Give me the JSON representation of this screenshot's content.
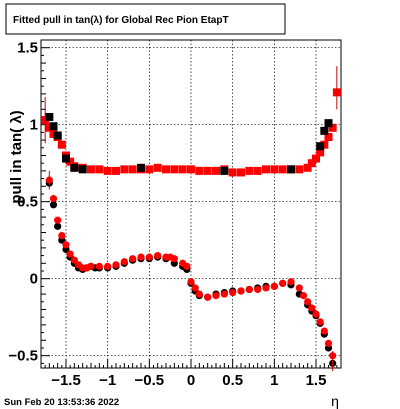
{
  "chart_data": {
    "type": "scatter",
    "title": "Fitted pull in tan(λ) for Global Rec Pion EtapT",
    "xlabel": "η",
    "ylabel": "pull in tan( λ)",
    "xlim": [
      -1.8,
      1.8
    ],
    "ylim": [
      -0.58,
      1.55
    ],
    "xticks": [
      -1.5,
      -1,
      -0.5,
      0,
      0.5,
      1,
      1.5
    ],
    "xtick_labels": [
      "−1.5",
      "−1",
      "−0.5",
      "0",
      "0.5",
      "1",
      "1.5"
    ],
    "yticks": [
      -0.5,
      0,
      0.5,
      1,
      1.5
    ],
    "ytick_labels": [
      "−0.5",
      "0",
      "0.5",
      "1",
      "1.5"
    ],
    "grid": true,
    "series": [
      {
        "marker": "circle",
        "color": "#000000",
        "x": [
          -1.7,
          -1.65,
          -1.6,
          -1.55,
          -1.5,
          -1.45,
          -1.4,
          -1.35,
          -1.3,
          -1.25,
          -1.2,
          -1.15,
          -1.1,
          -1.0,
          -0.9,
          -0.8,
          -0.7,
          -0.6,
          -0.5,
          -0.4,
          -0.3,
          -0.2,
          -0.1,
          -0.05,
          0.0,
          0.05,
          0.1,
          0.2,
          0.3,
          0.4,
          0.5,
          0.6,
          0.7,
          0.8,
          0.9,
          1.0,
          1.1,
          1.2,
          1.3,
          1.4,
          1.45,
          1.5,
          1.55,
          1.6,
          1.65,
          1.7
        ],
        "y": [
          0.62,
          0.48,
          0.34,
          0.25,
          0.19,
          0.14,
          0.1,
          0.07,
          0.06,
          0.07,
          0.08,
          0.07,
          0.07,
          0.07,
          0.08,
          0.1,
          0.12,
          0.13,
          0.13,
          0.14,
          0.13,
          0.1,
          0.08,
          0.06,
          -0.03,
          -0.08,
          -0.11,
          -0.12,
          -0.1,
          -0.09,
          -0.08,
          -0.08,
          -0.07,
          -0.06,
          -0.05,
          -0.05,
          -0.03,
          -0.04,
          -0.1,
          -0.17,
          -0.21,
          -0.24,
          -0.29,
          -0.36,
          -0.45,
          -0.55
        ]
      },
      {
        "marker": "square",
        "color": "#ff0000",
        "x": [
          -1.75,
          -1.7,
          -1.65,
          -1.6,
          -1.55,
          -1.5,
          -1.45,
          -1.4,
          -1.3,
          -1.2,
          -1.1,
          -1.0,
          -0.9,
          -0.8,
          -0.7,
          -0.6,
          -0.5,
          -0.4,
          -0.3,
          -0.2,
          -0.1,
          0.0,
          0.1,
          0.2,
          0.3,
          0.4,
          0.5,
          0.6,
          0.7,
          0.8,
          0.9,
          1.0,
          1.1,
          1.2,
          1.3,
          1.4,
          1.45,
          1.5,
          1.55,
          1.6,
          1.65,
          1.7,
          1.75
        ],
        "y": [
          1.03,
          0.98,
          0.94,
          0.92,
          0.87,
          0.8,
          0.76,
          0.73,
          0.72,
          0.71,
          0.71,
          0.7,
          0.7,
          0.71,
          0.71,
          0.71,
          0.71,
          0.72,
          0.71,
          0.71,
          0.71,
          0.71,
          0.7,
          0.7,
          0.7,
          0.71,
          0.69,
          0.69,
          0.7,
          0.7,
          0.71,
          0.71,
          0.71,
          0.71,
          0.71,
          0.72,
          0.75,
          0.78,
          0.82,
          0.87,
          0.92,
          0.98,
          1.21
        ]
      },
      {
        "marker": "circle",
        "color": "#ff0000",
        "x": [
          -1.7,
          -1.65,
          -1.6,
          -1.55,
          -1.5,
          -1.45,
          -1.4,
          -1.35,
          -1.3,
          -1.25,
          -1.2,
          -1.1,
          -1.0,
          -0.9,
          -0.8,
          -0.7,
          -0.6,
          -0.5,
          -0.4,
          -0.3,
          -0.25,
          -0.2,
          -0.1,
          -0.05,
          0.0,
          0.05,
          0.1,
          0.2,
          0.3,
          0.4,
          0.5,
          0.6,
          0.7,
          0.8,
          0.9,
          1.0,
          1.1,
          1.2,
          1.3,
          1.35,
          1.4,
          1.45,
          1.5,
          1.55,
          1.6,
          1.65,
          1.7
        ],
        "y": [
          0.64,
          0.52,
          0.38,
          0.28,
          0.22,
          0.16,
          0.12,
          0.09,
          0.07,
          0.07,
          0.08,
          0.08,
          0.08,
          0.09,
          0.11,
          0.13,
          0.14,
          0.14,
          0.15,
          0.14,
          0.14,
          0.13,
          0.1,
          0.08,
          -0.02,
          -0.06,
          -0.1,
          -0.12,
          -0.11,
          -0.1,
          -0.09,
          -0.08,
          -0.07,
          -0.07,
          -0.06,
          -0.05,
          -0.03,
          -0.02,
          -0.06,
          -0.11,
          -0.15,
          -0.19,
          -0.23,
          -0.28,
          -0.34,
          -0.42,
          -0.5
        ]
      },
      {
        "marker": "square",
        "color": "#000000",
        "x": [
          -1.7,
          -1.65,
          -1.6,
          -1.5,
          -1.4,
          -1.3,
          -0.6,
          0.4,
          1.2,
          1.55,
          1.6,
          1.65
        ],
        "y": [
          1.05,
          0.99,
          0.93,
          0.78,
          0.72,
          0.71,
          0.72,
          0.7,
          0.71,
          0.86,
          0.96,
          1.01
        ]
      }
    ]
  },
  "footer": {
    "timestamp": "Sun Feb 20 13:53:36 2022"
  }
}
